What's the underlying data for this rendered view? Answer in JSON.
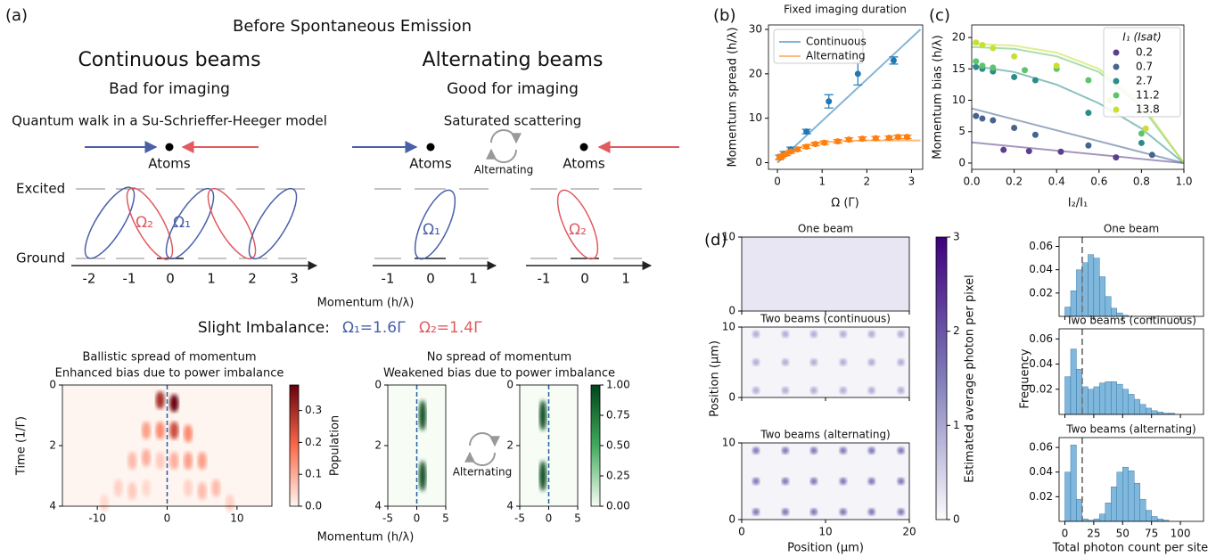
{
  "diagram": {
    "panel_label": "(a)",
    "title": "Before Spontaneous Emission",
    "continuous": {
      "heading": "Continuous beams",
      "verdict": "Bad for imaging",
      "model": "Quantum walk in a Su-Schrieffer-Heeger model",
      "atoms": "Atoms",
      "omega_labels": [
        "Ω₂",
        "Ω₁"
      ],
      "momenta": [
        "-2",
        "-1",
        "0",
        "1",
        "2",
        "3"
      ],
      "spread": "Ballistic spread of momentum",
      "bias": "Enhanced bias due to power imbalance"
    },
    "alternating": {
      "heading": "Alternating beams",
      "verdict": "Good for imaging",
      "model": "Saturated scattering",
      "atoms": [
        "Atoms",
        "Atoms"
      ],
      "switch": "Alternating",
      "omega_labels": [
        "Ω₁",
        "Ω₂"
      ],
      "momenta": [
        "-1",
        "0",
        "1"
      ],
      "spread": "No spread of momentum",
      "bias": "Weakened bias due to power imbalance"
    },
    "levels": [
      "Excited",
      "Ground"
    ],
    "momentum_label": "Momentum (h/λ)",
    "imbalance": {
      "label": "Slight Imbalance:",
      "omega1": "Ω₁=1.6Γ",
      "omega2": "Ω₂=1.4Γ"
    }
  },
  "chart_data": [
    {
      "type": "heatmap",
      "xlabel": "Momentum (h/λ)",
      "ylabel": "Time (1/Γ)",
      "colorbar_label": "Population",
      "colormap": "Reds",
      "xlim": [
        -15,
        15
      ],
      "xticks": [
        -10,
        0,
        10
      ],
      "ylim": [
        4,
        0
      ],
      "yticks": [
        0,
        2,
        4
      ],
      "clim": [
        0,
        0.38
      ],
      "cticks": [
        {
          "value": 0,
          "label": "0.0"
        },
        0.1,
        0.2,
        0.3
      ],
      "reference_x": 0,
      "panels": [
        {
          "x": [
            -1,
            1,
            -3,
            -1,
            1,
            3,
            -5,
            -3,
            -1,
            1,
            3,
            5,
            -7,
            -5,
            -3,
            3,
            5,
            7,
            -9,
            9
          ],
          "y": [
            0.5,
            0.6,
            1.5,
            1.5,
            1.5,
            1.6,
            2.5,
            2.4,
            2.5,
            2.5,
            2.5,
            2.5,
            3.4,
            3.5,
            3.4,
            3.4,
            3.5,
            3.4,
            3.9,
            3.9
          ],
          "values": [
            0.3,
            0.38,
            0.12,
            0.15,
            0.25,
            0.15,
            0.08,
            0.1,
            0.06,
            0.1,
            0.12,
            0.12,
            0.05,
            0.06,
            0.04,
            0.05,
            0.08,
            0.08,
            0.04,
            0.05
          ]
        }
      ]
    },
    {
      "type": "heatmap",
      "annotation": "Alternating",
      "colormap": "Greens",
      "xlim": [
        -5,
        5
      ],
      "xticks": [
        -5,
        0,
        5
      ],
      "ylim": [
        4,
        0
      ],
      "yticks": [
        0,
        2,
        4
      ],
      "clim": [
        0,
        1
      ],
      "cticks": [
        {
          "value": 0,
          "label": "0.00"
        },
        0.25,
        {
          "value": 0.5,
          "label": "0.50"
        },
        0.75,
        {
          "value": 1,
          "label": "1.00"
        }
      ],
      "reference_x": 0,
      "panels": [
        {
          "x": [
            1,
            1
          ],
          "y": [
            1,
            3
          ],
          "values": [
            0.95,
            0.95
          ]
        },
        {
          "x": [
            -1,
            -1
          ],
          "y": [
            1,
            3
          ],
          "values": [
            0.95,
            0.95
          ]
        }
      ]
    },
    {
      "type": "line",
      "panel_label": "(b)",
      "title": "Fixed imaging duration",
      "xlabel": "Ω (Γ)",
      "ylabel": "Momentum spread (h/λ)",
      "xlim": [
        -0.2,
        3.25
      ],
      "xticks": [
        0,
        1,
        2,
        3
      ],
      "ylim": [
        -1.5,
        31
      ],
      "yticks": [
        0,
        10,
        20,
        30
      ],
      "series": [
        {
          "name": "Continuous",
          "color": "#1f77b4",
          "fit_x": [
            0,
            3.2
          ],
          "fit_values": [
            0,
            30
          ],
          "x": [
            0.05,
            0.15,
            0.3,
            0.65,
            1.15,
            1.8,
            2.6
          ],
          "values": [
            1.2,
            2,
            3,
            7,
            13.8,
            20,
            23
          ],
          "errors": [
            0.5,
            0.5,
            0.5,
            0.5,
            1.5,
            2.5,
            0.8
          ]
        },
        {
          "name": "Alternating",
          "color": "#ff7f0e",
          "fit_x": [
            0,
            0.25,
            0.5,
            0.75,
            1,
            1.5,
            2,
            2.5,
            3.2
          ],
          "fit_values": [
            0,
            2.2,
            3.5,
            4.2,
            4.6,
            4.9,
            5,
            5,
            5
          ],
          "x": [
            0.05,
            0.1,
            0.2,
            0.3,
            0.45,
            0.65,
            0.85,
            1.05,
            1.35,
            1.6,
            1.9,
            2.2,
            2.5,
            2.7,
            2.9
          ],
          "values": [
            1.2,
            1.5,
            2,
            2.5,
            3,
            3.6,
            4.2,
            4.5,
            4.8,
            5.2,
            5.4,
            5.5,
            5.6,
            5.8,
            5.8
          ],
          "errors": [
            0.4,
            0.4,
            0.4,
            0.4,
            0.4,
            0.4,
            0.4,
            0.4,
            0.4,
            0.4,
            0.4,
            0.4,
            0.4,
            0.4,
            0.4
          ]
        }
      ]
    },
    {
      "type": "line",
      "panel_label": "(c)",
      "xlabel": "I₂/I₁",
      "ylabel": "Momentum bias (h/λ)",
      "legend_title": "I₁ (Isat)",
      "xlim": [
        0,
        1
      ],
      "xticks": [
        {
          "value": 0,
          "label": "0.0"
        },
        0.2,
        0.4,
        0.6,
        0.8,
        {
          "value": 1,
          "label": "1.0"
        }
      ],
      "ylim": [
        -1,
        22
      ],
      "yticks": [
        0,
        5,
        10,
        15,
        20
      ],
      "series": [
        {
          "name": "0.2",
          "color": "#5b3f8c",
          "fit_x": [
            0,
            1
          ],
          "fit_values": [
            3.3,
            0
          ],
          "x": [
            0.15,
            0.27,
            0.42,
            0.68
          ],
          "values": [
            2.1,
            1.9,
            1.8,
            0.9
          ]
        },
        {
          "name": "0.7",
          "color": "#46648f",
          "fit_x": [
            0,
            1
          ],
          "fit_values": [
            8.7,
            0
          ],
          "x": [
            0.02,
            0.05,
            0.1,
            0.2,
            0.3,
            0.55,
            0.85
          ],
          "values": [
            7.5,
            7.1,
            6.8,
            5.6,
            4.5,
            2.8,
            1.3
          ]
        },
        {
          "name": "2.7",
          "color": "#2c8c8a",
          "fit_x": [
            0,
            0.2,
            0.4,
            0.6,
            0.8,
            1
          ],
          "fit_values": [
            15.5,
            14.5,
            12.5,
            9.5,
            5.5,
            0
          ],
          "x": [
            0.02,
            0.05,
            0.1,
            0.2,
            0.3,
            0.55,
            0.8
          ],
          "values": [
            15.3,
            15,
            14.6,
            13.7,
            13.2,
            8,
            3.2
          ]
        },
        {
          "name": "11.2",
          "color": "#5ec46a",
          "fit_x": [
            0,
            0.2,
            0.4,
            0.6,
            0.8,
            1
          ],
          "fit_values": [
            18.5,
            18.2,
            17,
            14.5,
            9,
            0
          ],
          "x": [
            0.02,
            0.05,
            0.1,
            0.25,
            0.4,
            0.55,
            0.8
          ],
          "values": [
            16.2,
            15.5,
            15.2,
            14.8,
            15,
            13.2,
            4.7
          ]
        },
        {
          "name": "13.8",
          "color": "#c9e033",
          "fit_x": [
            0,
            0.2,
            0.4,
            0.6,
            0.8,
            1
          ],
          "fit_values": [
            19,
            18.7,
            17.6,
            15,
            9.5,
            0
          ],
          "x": [
            0.02,
            0.05,
            0.1,
            0.2,
            0.4,
            0.65,
            0.82
          ],
          "values": [
            19.2,
            18.8,
            18.3,
            17,
            15.5,
            10,
            5.5
          ]
        }
      ]
    },
    {
      "type": "image",
      "panel_label": "(d)",
      "xlabel": "Position (μm)",
      "ylabel": "Position (μm)",
      "colorbar_label": "Estimated average photon per pixel",
      "colormap": "Purples",
      "xlim": [
        0,
        20
      ],
      "xticks": [
        0,
        10,
        20
      ],
      "ylim": [
        0,
        10
      ],
      "yticks": [
        0,
        10
      ],
      "clim": [
        0,
        3
      ],
      "cticks": [
        0,
        1,
        2,
        3
      ],
      "spot_x": [
        1.7,
        5.2,
        8.6,
        12.1,
        15.5,
        19
      ],
      "spot_y": [
        1,
        5,
        9
      ],
      "panels": [
        {
          "title": "One beam",
          "background": 0.25,
          "spot_value": 0.25
        },
        {
          "title": "Two beams (continuous)",
          "background": 0.08,
          "spot_value": 0.9
        },
        {
          "title": "Two beams (alternating)",
          "background": 0.08,
          "spot_value": 1.5
        }
      ]
    },
    {
      "type": "histogram",
      "xlabel": "Total photon count per site",
      "ylabel": "Frequency",
      "color": "#7fb8dc",
      "xlim": [
        -5,
        120
      ],
      "xticks": [
        0,
        25,
        50,
        75,
        100
      ],
      "ylim": [
        0,
        0.068
      ],
      "yticks": [
        0.02,
        0.04,
        0.06
      ],
      "threshold": 15,
      "bins": [
        0,
        5,
        10,
        15,
        20,
        25,
        30,
        35,
        40,
        45,
        50,
        55,
        60,
        65,
        70,
        75,
        80,
        85,
        90,
        95,
        100,
        105,
        110,
        115,
        120
      ],
      "panels": [
        {
          "title": "One beam",
          "counts": [
            0.008,
            0.022,
            0.04,
            0.046,
            0.053,
            0.05,
            0.034,
            0.017,
            0.007,
            0.003,
            0.001,
            0,
            0,
            0,
            0,
            0,
            0,
            0,
            0,
            0,
            0,
            0,
            0,
            0
          ]
        },
        {
          "title": "Two beams (continuous)",
          "counts": [
            0.03,
            0.052,
            0.036,
            0.022,
            0.02,
            0.022,
            0.025,
            0.026,
            0.026,
            0.024,
            0.02,
            0.016,
            0.012,
            0.008,
            0.005,
            0.003,
            0.002,
            0.001,
            0.001,
            0,
            0,
            0,
            0,
            0
          ]
        },
        {
          "title": "Two beams (alternating)",
          "counts": [
            0.04,
            0.062,
            0.018,
            0.002,
            0.001,
            0.002,
            0.006,
            0.015,
            0.028,
            0.04,
            0.044,
            0.041,
            0.031,
            0.018,
            0.009,
            0.004,
            0.002,
            0.001,
            0,
            0,
            0,
            0,
            0,
            0
          ]
        }
      ]
    }
  ]
}
